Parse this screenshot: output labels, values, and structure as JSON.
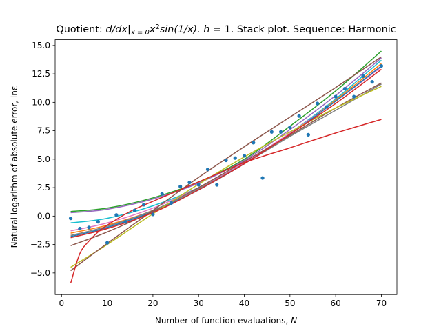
{
  "chart_data": {
    "type": "line",
    "title_prefix": "Quotient: ",
    "title_math": "d/dx|",
    "title_sub": "x = 0",
    "title_math2": "x",
    "title_sup": "2",
    "title_math3": "sin(1/x). ",
    "title_h": "h",
    "title_suffix": " = 1. Stack plot. Sequence: Harmonic",
    "xlabel_prefix": "Number of function evaluations, ",
    "xlabel_var": "N",
    "ylabel": "Natural logarithm of absolute error, lnε",
    "xlim": [
      -1.4,
      73.4
    ],
    "ylim": [
      -6.9,
      15.5
    ],
    "xticks": [
      0,
      10,
      20,
      30,
      40,
      50,
      60,
      70
    ],
    "yticks": [
      -5.0,
      -2.5,
      0.0,
      2.5,
      5.0,
      7.5,
      10.0,
      12.5,
      15.0
    ],
    "xtick_labels": [
      "0",
      "10",
      "20",
      "30",
      "40",
      "50",
      "60",
      "70"
    ],
    "ytick_labels": [
      "−5.0",
      "−2.5",
      "0.0",
      "2.5",
      "5.0",
      "7.5",
      "10.0",
      "12.5",
      "15.0"
    ],
    "scatter": {
      "color": "#1f77b4",
      "x": [
        2,
        4,
        6,
        8,
        10,
        12,
        14,
        16,
        18,
        20,
        22,
        24,
        26,
        28,
        30,
        32,
        34,
        36,
        38,
        40,
        42,
        44,
        46,
        48,
        50,
        52,
        54,
        56,
        58,
        60,
        62,
        64,
        66,
        68,
        70
      ],
      "y": [
        -0.2,
        -1.1,
        -1.0,
        -0.5,
        -2.35,
        0.1,
        -0.5,
        0.5,
        1.0,
        0.15,
        1.95,
        1.15,
        2.6,
        2.95,
        2.75,
        4.1,
        2.75,
        4.9,
        5.1,
        5.3,
        6.45,
        3.35,
        7.4,
        7.4,
        7.8,
        8.8,
        7.15,
        9.9,
        9.6,
        10.5,
        11.2,
        10.5,
        12.3,
        11.8,
        13.2
      ]
    },
    "series": [
      {
        "color": "#2ca02c",
        "x": [
          2,
          10,
          20,
          30,
          40,
          50,
          60,
          70
        ],
        "y": [
          0.4,
          0.7,
          1.6,
          3.0,
          5.0,
          7.9,
          11.0,
          14.5
        ]
      },
      {
        "color": "#9467bd",
        "x": [
          2,
          10,
          20,
          30,
          40,
          50,
          60,
          70
        ],
        "y": [
          0.3,
          0.6,
          1.5,
          2.9,
          4.9,
          7.6,
          10.6,
          13.9
        ]
      },
      {
        "color": "#17becf",
        "x": [
          2,
          10,
          20,
          30,
          40,
          50,
          60,
          70
        ],
        "y": [
          -0.6,
          -0.2,
          0.9,
          2.5,
          4.6,
          7.3,
          10.3,
          13.7
        ]
      },
      {
        "color": "#ff7f0e",
        "x": [
          2,
          10,
          20,
          30,
          40,
          50,
          60,
          70
        ],
        "y": [
          -1.5,
          -0.8,
          0.5,
          2.4,
          4.6,
          7.2,
          10.2,
          13.4
        ]
      },
      {
        "color": "#e377c2",
        "x": [
          2,
          10,
          20,
          30,
          40,
          50,
          60,
          70
        ],
        "y": [
          -1.3,
          -0.6,
          0.7,
          2.5,
          4.7,
          7.3,
          10.1,
          13.1
        ]
      },
      {
        "color": "#1f77b4",
        "x": [
          2,
          10,
          20,
          30,
          40,
          50,
          60,
          70
        ],
        "y": [
          -1.8,
          -1.0,
          0.4,
          2.3,
          4.6,
          7.2,
          10.1,
          13.2
        ]
      },
      {
        "color": "#8c564b",
        "x": [
          2,
          10,
          20,
          30,
          40,
          50,
          60,
          70
        ],
        "y": [
          -2.6,
          -1.4,
          0.4,
          2.5,
          4.8,
          7.1,
          9.5,
          11.7
        ]
      },
      {
        "color": "#7f7f7f",
        "x": [
          2,
          10,
          20,
          30,
          40,
          50,
          60,
          70
        ],
        "y": [
          -1.7,
          -0.9,
          0.5,
          2.4,
          4.6,
          7.0,
          9.3,
          11.6
        ]
      },
      {
        "color": "#bcbd22",
        "x": [
          2,
          10,
          20,
          30,
          40,
          50,
          60,
          70
        ],
        "y": [
          -4.5,
          -2.5,
          0.2,
          2.8,
          5.2,
          7.4,
          9.5,
          11.4
        ]
      },
      {
        "color": "#8c564b",
        "x": [
          2,
          10,
          20,
          30,
          40,
          50,
          60,
          70
        ],
        "y": [
          -4.8,
          -2.4,
          0.5,
          3.4,
          6.1,
          8.7,
          11.3,
          14.0
        ]
      },
      {
        "color": "#d62728",
        "x": [
          2,
          4,
          6,
          8,
          10,
          15,
          20,
          30,
          40,
          50,
          60,
          70
        ],
        "y": [
          -5.9,
          -3.3,
          -2.2,
          -1.4,
          -0.8,
          0.4,
          1.3,
          3.0,
          4.7,
          6.0,
          7.3,
          8.5
        ]
      },
      {
        "color": "#d62728",
        "x": [
          2,
          10,
          20,
          30,
          40,
          50,
          60,
          70
        ],
        "y": [
          -1.9,
          -1.1,
          0.3,
          2.3,
          4.6,
          7.2,
          9.9,
          12.9
        ]
      }
    ]
  }
}
